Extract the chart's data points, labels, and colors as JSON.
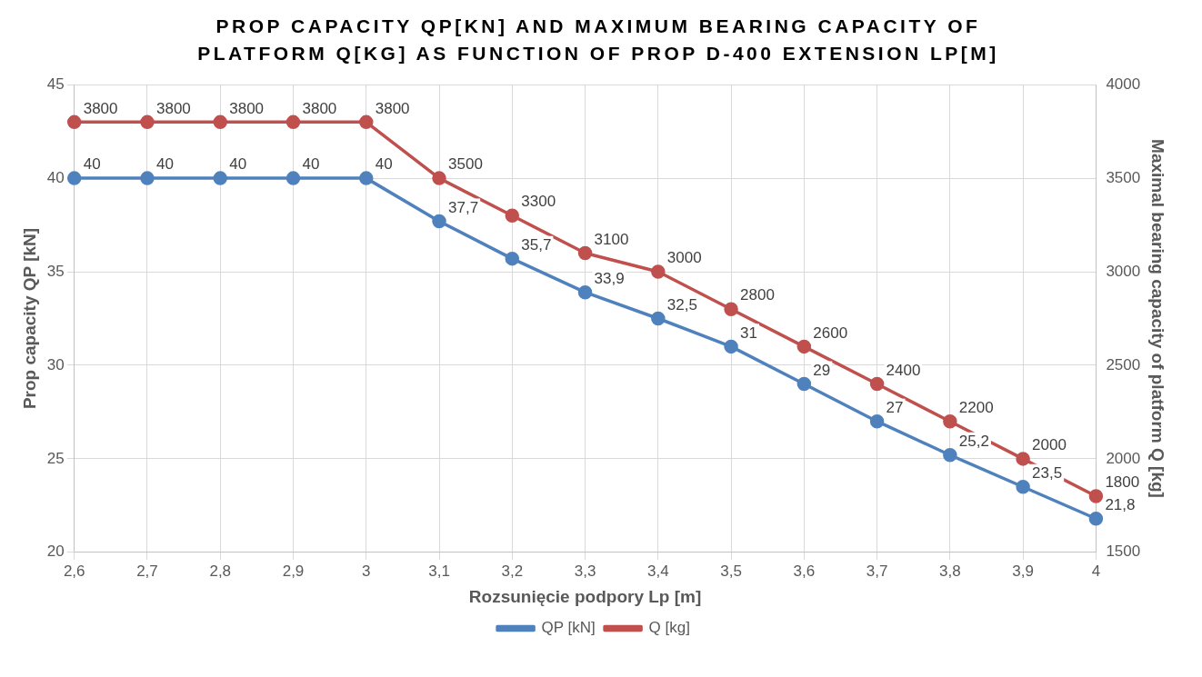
{
  "chart_data": {
    "type": "line",
    "title": "PROP CAPACITY QP[KN] AND MAXIMUM BEARING CAPACITY OF PLATFORM Q[KG] AS FUNCTION OF PROP D-400 EXTENSION LP[M]",
    "xlabel": "Rozsunięcie podpory Lp [m]",
    "ylabel": "Prop capacity QP [kN]",
    "y2label": "Maximal bearing capacity of platform Q [kg]",
    "categories": [
      "2,6",
      "2,7",
      "2,8",
      "2,9",
      "3",
      "3,1",
      "3,2",
      "3,3",
      "3,4",
      "3,5",
      "3,6",
      "3,7",
      "3,8",
      "3,9",
      "4"
    ],
    "series": [
      {
        "name": "QP [kN]",
        "color": "#4f81bd",
        "values": [
          40,
          40,
          40,
          40,
          40,
          37.7,
          35.7,
          33.9,
          32.5,
          31,
          29,
          27,
          25.2,
          23.5,
          21.8
        ],
        "value_labels": [
          "40",
          "40",
          "40",
          "40",
          "40",
          "37,7",
          "35,7",
          "33,9",
          "32,5",
          "31",
          "29",
          "27",
          "25,2",
          "23,5",
          "21,8"
        ]
      },
      {
        "name": "Q [kg]",
        "color": "#c0504d",
        "axis": "y2",
        "values": [
          3800,
          3800,
          3800,
          3800,
          3800,
          3500,
          3300,
          3100,
          3000,
          2800,
          2600,
          2400,
          2200,
          2000,
          1800
        ],
        "value_labels": [
          "3800",
          "3800",
          "3800",
          "3800",
          "3800",
          "3500",
          "3300",
          "3100",
          "3000",
          "2800",
          "2600",
          "2400",
          "2200",
          "2000",
          "1800"
        ]
      }
    ],
    "ylim": [
      20,
      45
    ],
    "yticks": [
      20,
      25,
      30,
      35,
      40,
      45
    ],
    "y2lim": [
      1500,
      4000
    ],
    "y2ticks": [
      1500,
      2000,
      2500,
      3000,
      3500,
      4000
    ],
    "grid": true,
    "legend": "bottom",
    "marker": "circle",
    "line_style": "solid"
  }
}
